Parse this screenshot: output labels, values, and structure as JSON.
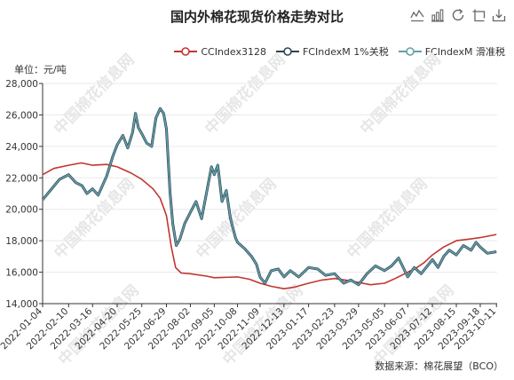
{
  "page": {
    "title": "国内外棉花现货价格走势对比",
    "unit_label": "单位：元/吨",
    "source": "数据来源：棉花展望（BCO）",
    "watermark": "中国棉花信息网"
  },
  "toolbar": [
    {
      "name": "line-chart-icon"
    },
    {
      "name": "bar-chart-icon"
    },
    {
      "name": "restore-icon"
    },
    {
      "name": "data-view-icon"
    },
    {
      "name": "save-image-icon"
    }
  ],
  "legend": [
    {
      "label": "CCIndex3128",
      "color": "#c23531"
    },
    {
      "label": "FCIndexM 1%关税",
      "color": "#2f4554"
    },
    {
      "label": "FCIndexM 滑准税",
      "color": "#61a0a8"
    }
  ],
  "chart_data": {
    "type": "line",
    "x_start": "2022-01-04",
    "x_end": "2023-10-12",
    "x_tick_labels": [
      "2022-01-04",
      "2022-02-10",
      "2022-03-16",
      "2022-04-20",
      "2022-05-25",
      "2022-06-29",
      "2022-08-02",
      "2022-09-05",
      "2022-10-08",
      "2022-11-09",
      "2022-12-13",
      "2023-01-17",
      "2023-02-23",
      "2023-03-29",
      "2023-05-05",
      "2023-06-07",
      "2023-07-12",
      "2023-08-15",
      "2023-09-18",
      "2023-10-11"
    ],
    "y_tick_labels": [
      "14,000",
      "16,000",
      "18,000",
      "20,000",
      "22,000",
      "24,000",
      "26,000",
      "28,000"
    ],
    "ylim": [
      14000,
      28000
    ],
    "grid": true,
    "series": [
      {
        "name": "CCIndex3128",
        "color": "#c23531",
        "points": [
          [
            "2022-01-04",
            22200
          ],
          [
            "2022-01-20",
            22600
          ],
          [
            "2022-02-10",
            22800
          ],
          [
            "2022-02-28",
            22950
          ],
          [
            "2022-03-16",
            22800
          ],
          [
            "2022-04-05",
            22850
          ],
          [
            "2022-04-20",
            22700
          ],
          [
            "2022-05-10",
            22300
          ],
          [
            "2022-05-25",
            21900
          ],
          [
            "2022-06-10",
            21300
          ],
          [
            "2022-06-20",
            20700
          ],
          [
            "2022-06-29",
            19600
          ],
          [
            "2022-07-06",
            17600
          ],
          [
            "2022-07-12",
            16300
          ],
          [
            "2022-07-20",
            15950
          ],
          [
            "2022-08-02",
            15900
          ],
          [
            "2022-08-25",
            15750
          ],
          [
            "2022-09-05",
            15650
          ],
          [
            "2022-10-08",
            15700
          ],
          [
            "2022-10-25",
            15550
          ],
          [
            "2022-11-09",
            15300
          ],
          [
            "2022-11-25",
            15100
          ],
          [
            "2022-12-13",
            14950
          ],
          [
            "2022-12-28",
            15050
          ],
          [
            "2023-01-17",
            15300
          ],
          [
            "2023-02-05",
            15500
          ],
          [
            "2023-02-23",
            15600
          ],
          [
            "2023-03-10",
            15500
          ],
          [
            "2023-03-29",
            15350
          ],
          [
            "2023-04-15",
            15200
          ],
          [
            "2023-05-05",
            15300
          ],
          [
            "2023-05-20",
            15600
          ],
          [
            "2023-06-07",
            16000
          ],
          [
            "2023-06-20",
            16300
          ],
          [
            "2023-06-30",
            16600
          ],
          [
            "2023-07-12",
            17100
          ],
          [
            "2023-07-28",
            17600
          ],
          [
            "2023-08-15",
            18000
          ],
          [
            "2023-09-01",
            18100
          ],
          [
            "2023-09-18",
            18200
          ],
          [
            "2023-10-11",
            18400
          ]
        ]
      },
      {
        "name": "FCIndexM 1%关税",
        "color": "#2f4554",
        "points": [
          [
            "2022-01-04",
            20600
          ],
          [
            "2022-01-15",
            21200
          ],
          [
            "2022-01-28",
            21900
          ],
          [
            "2022-02-10",
            22200
          ],
          [
            "2022-02-20",
            21700
          ],
          [
            "2022-03-01",
            21500
          ],
          [
            "2022-03-08",
            21000
          ],
          [
            "2022-03-16",
            21300
          ],
          [
            "2022-03-24",
            20900
          ],
          [
            "2022-04-05",
            22100
          ],
          [
            "2022-04-14",
            23400
          ],
          [
            "2022-04-20",
            24100
          ],
          [
            "2022-04-28",
            24700
          ],
          [
            "2022-05-05",
            23900
          ],
          [
            "2022-05-12",
            24900
          ],
          [
            "2022-05-16",
            26100
          ],
          [
            "2022-05-20",
            25200
          ],
          [
            "2022-05-25",
            24800
          ],
          [
            "2022-06-01",
            24200
          ],
          [
            "2022-06-08",
            24000
          ],
          [
            "2022-06-14",
            25800
          ],
          [
            "2022-06-20",
            26400
          ],
          [
            "2022-06-25",
            26100
          ],
          [
            "2022-06-29",
            25100
          ],
          [
            "2022-07-04",
            21100
          ],
          [
            "2022-07-08",
            19100
          ],
          [
            "2022-07-13",
            17700
          ],
          [
            "2022-07-18",
            18100
          ],
          [
            "2022-07-25",
            19100
          ],
          [
            "2022-08-02",
            19800
          ],
          [
            "2022-08-10",
            20500
          ],
          [
            "2022-08-18",
            19400
          ],
          [
            "2022-08-26",
            21300
          ],
          [
            "2022-09-01",
            22700
          ],
          [
            "2022-09-05",
            22200
          ],
          [
            "2022-09-10",
            22800
          ],
          [
            "2022-09-16",
            20500
          ],
          [
            "2022-09-22",
            21200
          ],
          [
            "2022-09-28",
            19400
          ],
          [
            "2022-10-05",
            18200
          ],
          [
            "2022-10-08",
            17900
          ],
          [
            "2022-10-18",
            17500
          ],
          [
            "2022-10-28",
            17000
          ],
          [
            "2022-11-04",
            16500
          ],
          [
            "2022-11-09",
            15700
          ],
          [
            "2022-11-16",
            15300
          ],
          [
            "2022-11-25",
            16100
          ],
          [
            "2022-12-05",
            16200
          ],
          [
            "2022-12-13",
            15700
          ],
          [
            "2022-12-22",
            16100
          ],
          [
            "2023-01-03",
            15700
          ],
          [
            "2023-01-17",
            16300
          ],
          [
            "2023-01-30",
            16200
          ],
          [
            "2023-02-10",
            15800
          ],
          [
            "2023-02-23",
            15900
          ],
          [
            "2023-03-08",
            15300
          ],
          [
            "2023-03-18",
            15500
          ],
          [
            "2023-03-29",
            15200
          ],
          [
            "2023-04-10",
            15900
          ],
          [
            "2023-04-22",
            16400
          ],
          [
            "2023-05-05",
            16100
          ],
          [
            "2023-05-15",
            16400
          ],
          [
            "2023-05-25",
            16900
          ],
          [
            "2023-06-07",
            15700
          ],
          [
            "2023-06-16",
            16300
          ],
          [
            "2023-06-26",
            15900
          ],
          [
            "2023-07-03",
            16300
          ],
          [
            "2023-07-12",
            16800
          ],
          [
            "2023-07-20",
            16300
          ],
          [
            "2023-07-28",
            17000
          ],
          [
            "2023-08-05",
            17400
          ],
          [
            "2023-08-15",
            17100
          ],
          [
            "2023-08-25",
            17700
          ],
          [
            "2023-09-05",
            17400
          ],
          [
            "2023-09-12",
            17900
          ],
          [
            "2023-09-18",
            17600
          ],
          [
            "2023-09-28",
            17200
          ],
          [
            "2023-10-11",
            17300
          ]
        ]
      },
      {
        "name": "FCIndexM 滑准税",
        "color": "#61a0a8",
        "points": [
          [
            "2022-01-04",
            20600
          ],
          [
            "2022-01-15",
            21200
          ],
          [
            "2022-01-28",
            21900
          ],
          [
            "2022-02-10",
            22200
          ],
          [
            "2022-02-20",
            21700
          ],
          [
            "2022-03-01",
            21500
          ],
          [
            "2022-03-08",
            21000
          ],
          [
            "2022-03-16",
            21300
          ],
          [
            "2022-03-24",
            20900
          ],
          [
            "2022-04-05",
            22100
          ],
          [
            "2022-04-14",
            23400
          ],
          [
            "2022-04-20",
            24100
          ],
          [
            "2022-04-28",
            24700
          ],
          [
            "2022-05-05",
            23900
          ],
          [
            "2022-05-12",
            24900
          ],
          [
            "2022-05-16",
            26100
          ],
          [
            "2022-05-20",
            25200
          ],
          [
            "2022-05-25",
            24800
          ],
          [
            "2022-06-01",
            24200
          ],
          [
            "2022-06-08",
            24000
          ],
          [
            "2022-06-14",
            25800
          ],
          [
            "2022-06-20",
            26400
          ],
          [
            "2022-06-25",
            26100
          ],
          [
            "2022-06-29",
            25100
          ],
          [
            "2022-07-04",
            21100
          ],
          [
            "2022-07-08",
            19100
          ],
          [
            "2022-07-13",
            17700
          ],
          [
            "2022-07-18",
            18100
          ],
          [
            "2022-07-25",
            19100
          ],
          [
            "2022-08-02",
            19800
          ],
          [
            "2022-08-10",
            20500
          ],
          [
            "2022-08-18",
            19400
          ],
          [
            "2022-08-26",
            21300
          ],
          [
            "2022-09-01",
            22700
          ],
          [
            "2022-09-05",
            22200
          ],
          [
            "2022-09-10",
            22800
          ],
          [
            "2022-09-16",
            20500
          ],
          [
            "2022-09-22",
            21200
          ],
          [
            "2022-09-28",
            19400
          ],
          [
            "2022-10-05",
            18200
          ],
          [
            "2022-10-08",
            17900
          ],
          [
            "2022-10-18",
            17500
          ],
          [
            "2022-10-28",
            17000
          ],
          [
            "2022-11-04",
            16500
          ],
          [
            "2022-11-09",
            15700
          ],
          [
            "2022-11-16",
            15300
          ],
          [
            "2022-11-25",
            16100
          ],
          [
            "2022-12-05",
            16200
          ],
          [
            "2022-12-13",
            15700
          ],
          [
            "2022-12-22",
            16100
          ],
          [
            "2023-01-03",
            15700
          ],
          [
            "2023-01-17",
            16300
          ],
          [
            "2023-01-30",
            16200
          ],
          [
            "2023-02-10",
            15800
          ],
          [
            "2023-02-23",
            15900
          ],
          [
            "2023-03-08",
            15300
          ],
          [
            "2023-03-18",
            15500
          ],
          [
            "2023-03-29",
            15200
          ],
          [
            "2023-04-10",
            15900
          ],
          [
            "2023-04-22",
            16400
          ],
          [
            "2023-05-05",
            16100
          ],
          [
            "2023-05-15",
            16400
          ],
          [
            "2023-05-25",
            16900
          ],
          [
            "2023-06-07",
            15700
          ],
          [
            "2023-06-16",
            16300
          ],
          [
            "2023-06-26",
            15900
          ],
          [
            "2023-07-03",
            16300
          ],
          [
            "2023-07-12",
            16800
          ],
          [
            "2023-07-20",
            16300
          ],
          [
            "2023-07-28",
            17000
          ],
          [
            "2023-08-05",
            17400
          ],
          [
            "2023-08-15",
            17100
          ],
          [
            "2023-08-25",
            17700
          ],
          [
            "2023-09-05",
            17400
          ],
          [
            "2023-09-12",
            17900
          ],
          [
            "2023-09-18",
            17600
          ],
          [
            "2023-09-28",
            17200
          ],
          [
            "2023-10-11",
            17300
          ]
        ]
      }
    ]
  }
}
